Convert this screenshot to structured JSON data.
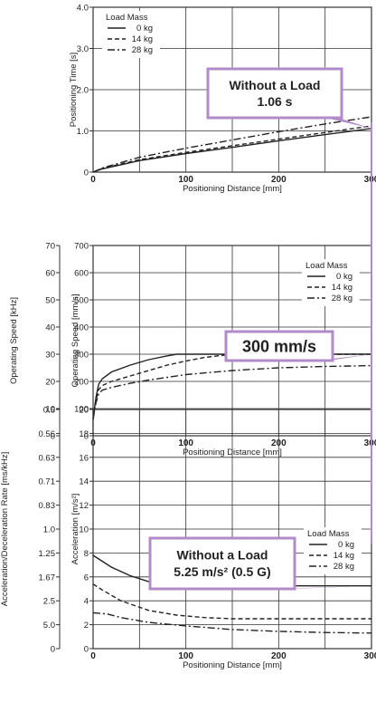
{
  "colors": {
    "axis": "#333333",
    "grid": "#333333",
    "line": "#222222",
    "callout_border": "#b28bc9",
    "callout_fill": "#ffffff",
    "callout_pointer": "#b28bc9"
  },
  "chart_data": [
    {
      "type": "line",
      "xlabel": "Positioning Distance [mm]",
      "ylabel": "Positioning Time [s]",
      "xlim": [
        0,
        300
      ],
      "ylim": [
        0,
        4.0
      ],
      "xticks": [
        "0",
        "100",
        "200",
        "300"
      ],
      "yticks": [
        "0",
        "1.0",
        "2.0",
        "3.0",
        "4.0"
      ],
      "grid": true,
      "legend_title": "Load Mass",
      "legend_placement": "top-left",
      "series": [
        {
          "name": "0 kg",
          "style": "solid",
          "x": [
            0,
            10,
            50,
            100,
            150,
            200,
            250,
            300
          ],
          "y": [
            0,
            0.08,
            0.28,
            0.45,
            0.6,
            0.76,
            0.91,
            1.06
          ]
        },
        {
          "name": "14 kg",
          "style": "dashed",
          "x": [
            0,
            10,
            50,
            100,
            150,
            200,
            250,
            300
          ],
          "y": [
            0,
            0.09,
            0.3,
            0.48,
            0.64,
            0.8,
            0.96,
            1.12
          ]
        },
        {
          "name": "28 kg",
          "style": "dashdot",
          "x": [
            0,
            10,
            50,
            100,
            150,
            200,
            250,
            300
          ],
          "y": [
            0,
            0.1,
            0.36,
            0.58,
            0.78,
            0.98,
            1.17,
            1.34
          ]
        }
      ],
      "callout": {
        "lines": [
          "Without a Load",
          "1.06 s"
        ],
        "target": {
          "x": 300,
          "y": 1.06
        }
      }
    },
    {
      "type": "line",
      "xlabel": "Positioning Distance [mm]",
      "ylabel": "Operating Speed [mm/s]",
      "ylabel2": "Operating Speed [kHz]",
      "xlim": [
        0,
        300
      ],
      "ylim": [
        0,
        700
      ],
      "ylim2": [
        0,
        70
      ],
      "xticks": [
        "0",
        "100",
        "200",
        "300"
      ],
      "yticks": [
        "0",
        "100",
        "200",
        "300",
        "400",
        "500",
        "600",
        "700"
      ],
      "yticks2": [
        "0",
        "10",
        "20",
        "30",
        "40",
        "50",
        "60",
        "70"
      ],
      "grid": true,
      "legend_title": "Load Mass",
      "legend_placement": "right",
      "series": [
        {
          "name": "0 kg",
          "style": "solid",
          "x": [
            0,
            3,
            6,
            10,
            20,
            40,
            60,
            80,
            90,
            100,
            150,
            200,
            250,
            300
          ],
          "y": [
            60,
            140,
            190,
            210,
            235,
            260,
            280,
            294,
            300,
            300,
            300,
            300,
            300,
            300
          ]
        },
        {
          "name": "14 kg",
          "style": "dashed",
          "x": [
            0,
            3,
            6,
            10,
            20,
            40,
            60,
            80,
            100,
            120,
            140,
            160,
            200,
            250,
            300
          ],
          "y": [
            60,
            130,
            170,
            185,
            200,
            220,
            240,
            260,
            275,
            288,
            296,
            300,
            300,
            300,
            300
          ]
        },
        {
          "name": "28 kg",
          "style": "dashdot",
          "x": [
            0,
            3,
            6,
            10,
            20,
            40,
            60,
            80,
            100,
            150,
            200,
            250,
            300
          ],
          "y": [
            60,
            120,
            155,
            168,
            178,
            193,
            205,
            215,
            225,
            240,
            250,
            255,
            258
          ]
        }
      ],
      "callout": {
        "lines": [
          "300 mm/s"
        ],
        "target": {
          "x": 300,
          "y": 300
        }
      }
    },
    {
      "type": "line",
      "xlabel": "Positioning Distance [mm]",
      "ylabel": "Acceleration [m/s²]",
      "ylabel2": "Acceleration/Deceleration Rate [ms/kHz]",
      "xlim": [
        0,
        300
      ],
      "ylim": [
        0,
        20
      ],
      "xticks": [
        "0",
        "100",
        "200",
        "300"
      ],
      "yticks": [
        "0",
        "2",
        "4",
        "6",
        "8",
        "10",
        "12",
        "14",
        "16",
        "18",
        "20"
      ],
      "yticks2": [
        "0",
        "5.0",
        "2.5",
        "1.67",
        "1.25",
        "1.0",
        "0.83",
        "0.71",
        "0.63",
        "0.56",
        "0.5"
      ],
      "grid": true,
      "legend_title": "Load Mass",
      "legend_placement": "right",
      "series": [
        {
          "name": "0 kg",
          "style": "solid",
          "x": [
            0,
            10,
            20,
            40,
            60,
            80,
            90,
            100,
            150,
            200,
            250,
            300
          ],
          "y": [
            7.8,
            7.3,
            6.8,
            6.1,
            5.6,
            5.3,
            5.25,
            5.25,
            5.25,
            5.25,
            5.25,
            5.25
          ]
        },
        {
          "name": "14 kg",
          "style": "dashed",
          "x": [
            0,
            10,
            30,
            60,
            90,
            120,
            150,
            200,
            250,
            300
          ],
          "y": [
            5.4,
            4.9,
            4.0,
            3.2,
            2.8,
            2.6,
            2.5,
            2.5,
            2.5,
            2.5
          ]
        },
        {
          "name": "28 kg",
          "style": "dashdot",
          "x": [
            0,
            15,
            30,
            60,
            100,
            150,
            200,
            250,
            300
          ],
          "y": [
            3.0,
            2.9,
            2.6,
            2.2,
            1.9,
            1.6,
            1.45,
            1.35,
            1.3
          ]
        }
      ],
      "callout": {
        "lines": [
          "Without a Load",
          "5.25 m/s² (0.5 G)"
        ],
        "target": {
          "x": 300,
          "y": 5.25
        }
      }
    }
  ]
}
